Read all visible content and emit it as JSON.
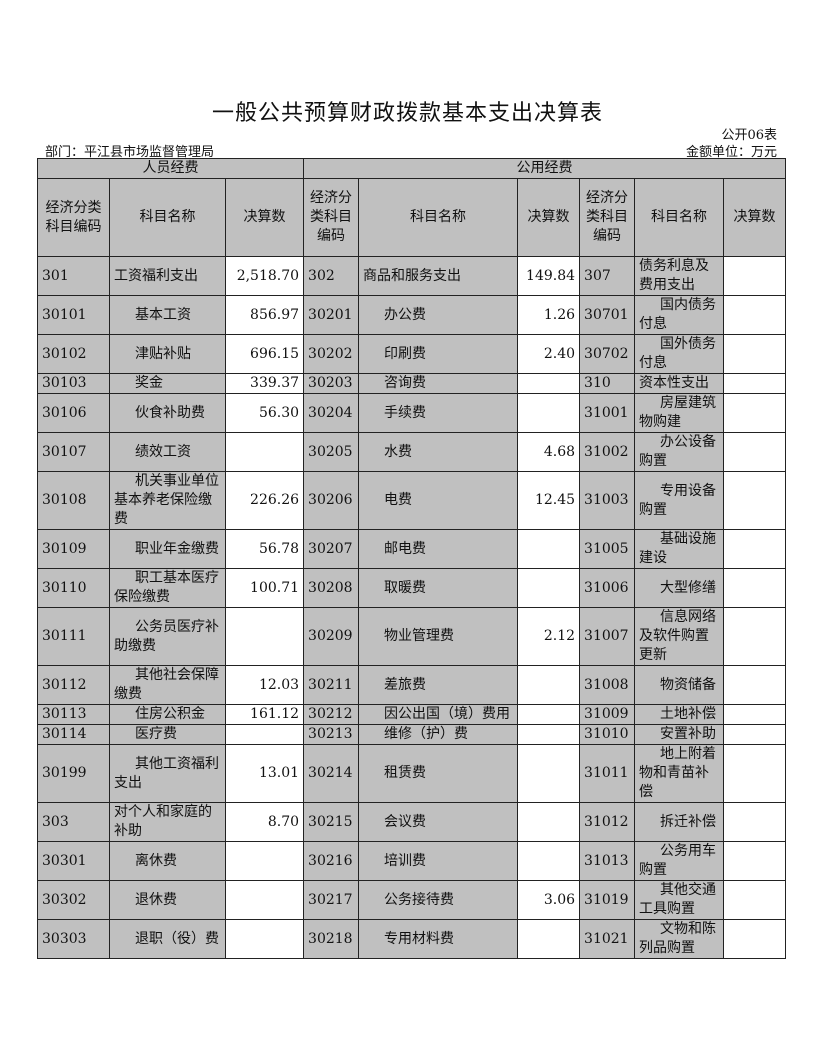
{
  "title": "一般公共预算财政拨款基本支出决算表",
  "form_no": "公开06表",
  "department": "部门：平江县市场监督管理局",
  "unit": "金额单位：万元",
  "header": {
    "group_personnel": "人员经费",
    "group_public": "公用经费",
    "col_code_1": "经济分类科目编码",
    "col_name_1": "科目名称",
    "col_amount_1": "决算数",
    "col_code_2": "经济分类科目编码",
    "col_name_2": "科目名称",
    "col_amount_2": "决算数",
    "col_code_3": "经济分类科目编码",
    "col_name_3": "科目名称",
    "col_amount_3": "决算数"
  },
  "rows": [
    {
      "c1": "301",
      "n1": "工资福利支出",
      "a1": "2,518.70",
      "c2": "302",
      "n2": "商品和服务支出",
      "a2": "149.84",
      "c3": "307",
      "n3": "债务利息及费用支出",
      "a3": "",
      "s1": false,
      "s2": false,
      "s3": false
    },
    {
      "c1": "30101",
      "n1": "基本工资",
      "a1": "856.97",
      "c2": "30201",
      "n2": "办公费",
      "a2": "1.26",
      "c3": "30701",
      "n3": "国内债务付息",
      "a3": "",
      "s1": true,
      "s2": true,
      "s3": true
    },
    {
      "c1": "30102",
      "n1": "津贴补贴",
      "a1": "696.15",
      "c2": "30202",
      "n2": "印刷费",
      "a2": "2.40",
      "c3": "30702",
      "n3": "国外债务付息",
      "a3": "",
      "s1": true,
      "s2": true,
      "s3": true
    },
    {
      "c1": "30103",
      "n1": "奖金",
      "a1": "339.37",
      "c2": "30203",
      "n2": "咨询费",
      "a2": "",
      "c3": "310",
      "n3": "资本性支出",
      "a3": "",
      "s1": true,
      "s2": true,
      "s3": false
    },
    {
      "c1": "30106",
      "n1": "伙食补助费",
      "a1": "56.30",
      "c2": "30204",
      "n2": "手续费",
      "a2": "",
      "c3": "31001",
      "n3": "房屋建筑物购建",
      "a3": "",
      "s1": true,
      "s2": true,
      "s3": true
    },
    {
      "c1": "30107",
      "n1": "绩效工资",
      "a1": "",
      "c2": "30205",
      "n2": "水费",
      "a2": "4.68",
      "c3": "31002",
      "n3": "办公设备购置",
      "a3": "",
      "s1": true,
      "s2": true,
      "s3": true
    },
    {
      "c1": "30108",
      "n1": "机关事业单位基本养老保险缴费",
      "a1": "226.26",
      "c2": "30206",
      "n2": "电费",
      "a2": "12.45",
      "c3": "31003",
      "n3": "专用设备购置",
      "a3": "",
      "s1": true,
      "s2": true,
      "s3": true
    },
    {
      "c1": "30109",
      "n1": "职业年金缴费",
      "a1": "56.78",
      "c2": "30207",
      "n2": "邮电费",
      "a2": "",
      "c3": "31005",
      "n3": "基础设施建设",
      "a3": "",
      "s1": true,
      "s2": true,
      "s3": true
    },
    {
      "c1": "30110",
      "n1": "职工基本医疗保险缴费",
      "a1": "100.71",
      "c2": "30208",
      "n2": "取暖费",
      "a2": "",
      "c3": "31006",
      "n3": "大型修缮",
      "a3": "",
      "s1": true,
      "s2": true,
      "s3": true
    },
    {
      "c1": "30111",
      "n1": "公务员医疗补助缴费",
      "a1": "",
      "c2": "30209",
      "n2": "物业管理费",
      "a2": "2.12",
      "c3": "31007",
      "n3": "信息网络及软件购置更新",
      "a3": "",
      "s1": true,
      "s2": true,
      "s3": true
    },
    {
      "c1": "30112",
      "n1": "其他社会保障缴费",
      "a1": "12.03",
      "c2": "30211",
      "n2": "差旅费",
      "a2": "",
      "c3": "31008",
      "n3": "物资储备",
      "a3": "",
      "s1": true,
      "s2": true,
      "s3": true
    },
    {
      "c1": "30113",
      "n1": "住房公积金",
      "a1": "161.12",
      "c2": "30212",
      "n2": "因公出国（境）费用",
      "a2": "",
      "c3": "31009",
      "n3": "土地补偿",
      "a3": "",
      "s1": true,
      "s2": true,
      "s3": true
    },
    {
      "c1": "30114",
      "n1": "医疗费",
      "a1": "",
      "c2": "30213",
      "n2": "维修（护）费",
      "a2": "",
      "c3": "31010",
      "n3": "安置补助",
      "a3": "",
      "s1": true,
      "s2": true,
      "s3": true
    },
    {
      "c1": "30199",
      "n1": "其他工资福利支出",
      "a1": "13.01",
      "c2": "30214",
      "n2": "租赁费",
      "a2": "",
      "c3": "31011",
      "n3": "地上附着物和青苗补偿",
      "a3": "",
      "s1": true,
      "s2": true,
      "s3": true
    },
    {
      "c1": "303",
      "n1": "对个人和家庭的补助",
      "a1": "8.70",
      "c2": "30215",
      "n2": "会议费",
      "a2": "",
      "c3": "31012",
      "n3": "拆迁补偿",
      "a3": "",
      "s1": false,
      "s2": true,
      "s3": true
    },
    {
      "c1": "30301",
      "n1": "离休费",
      "a1": "",
      "c2": "30216",
      "n2": "培训费",
      "a2": "",
      "c3": "31013",
      "n3": "公务用车购置",
      "a3": "",
      "s1": true,
      "s2": true,
      "s3": true
    },
    {
      "c1": "30302",
      "n1": "退休费",
      "a1": "",
      "c2": "30217",
      "n2": "公务接待费",
      "a2": "3.06",
      "c3": "31019",
      "n3": "其他交通工具购置",
      "a3": "",
      "s1": true,
      "s2": true,
      "s3": true
    },
    {
      "c1": "30303",
      "n1": "退职（役）费",
      "a1": "",
      "c2": "30218",
      "n2": "专用材料费",
      "a2": "",
      "c3": "31021",
      "n3": "文物和陈列品购置",
      "a3": "",
      "s1": true,
      "s2": true,
      "s3": true
    }
  ]
}
